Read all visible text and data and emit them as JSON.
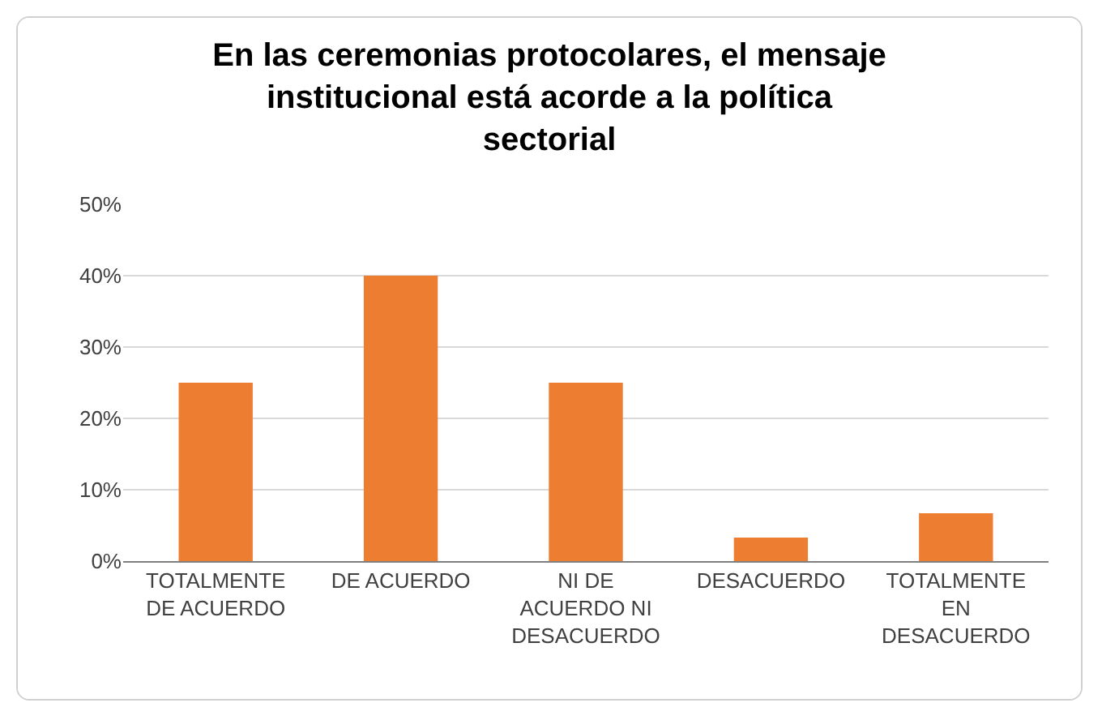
{
  "chart_data": {
    "type": "bar",
    "title": "En las ceremonias protocolares, el mensaje institucional está acorde a la política sectorial",
    "categories": [
      "TOTALMENTE DE ACUERDO",
      "DE ACUERDO",
      "NI DE ACUERDO NI DESACUERDO",
      "DESACUERDO",
      "TOTALMENTE EN DESACUERDO"
    ],
    "values": [
      25,
      40,
      25,
      3.3,
      6.7
    ],
    "color": "#ed7d31",
    "ylim": [
      0,
      50
    ],
    "yticks": [
      {
        "value": 0,
        "label": "0%"
      },
      {
        "value": 10,
        "label": "10%"
      },
      {
        "value": 20,
        "label": "20%"
      },
      {
        "value": 30,
        "label": "30%"
      },
      {
        "value": 40,
        "label": "40%"
      },
      {
        "value": 50,
        "label": "50%"
      }
    ],
    "grid": "y"
  }
}
